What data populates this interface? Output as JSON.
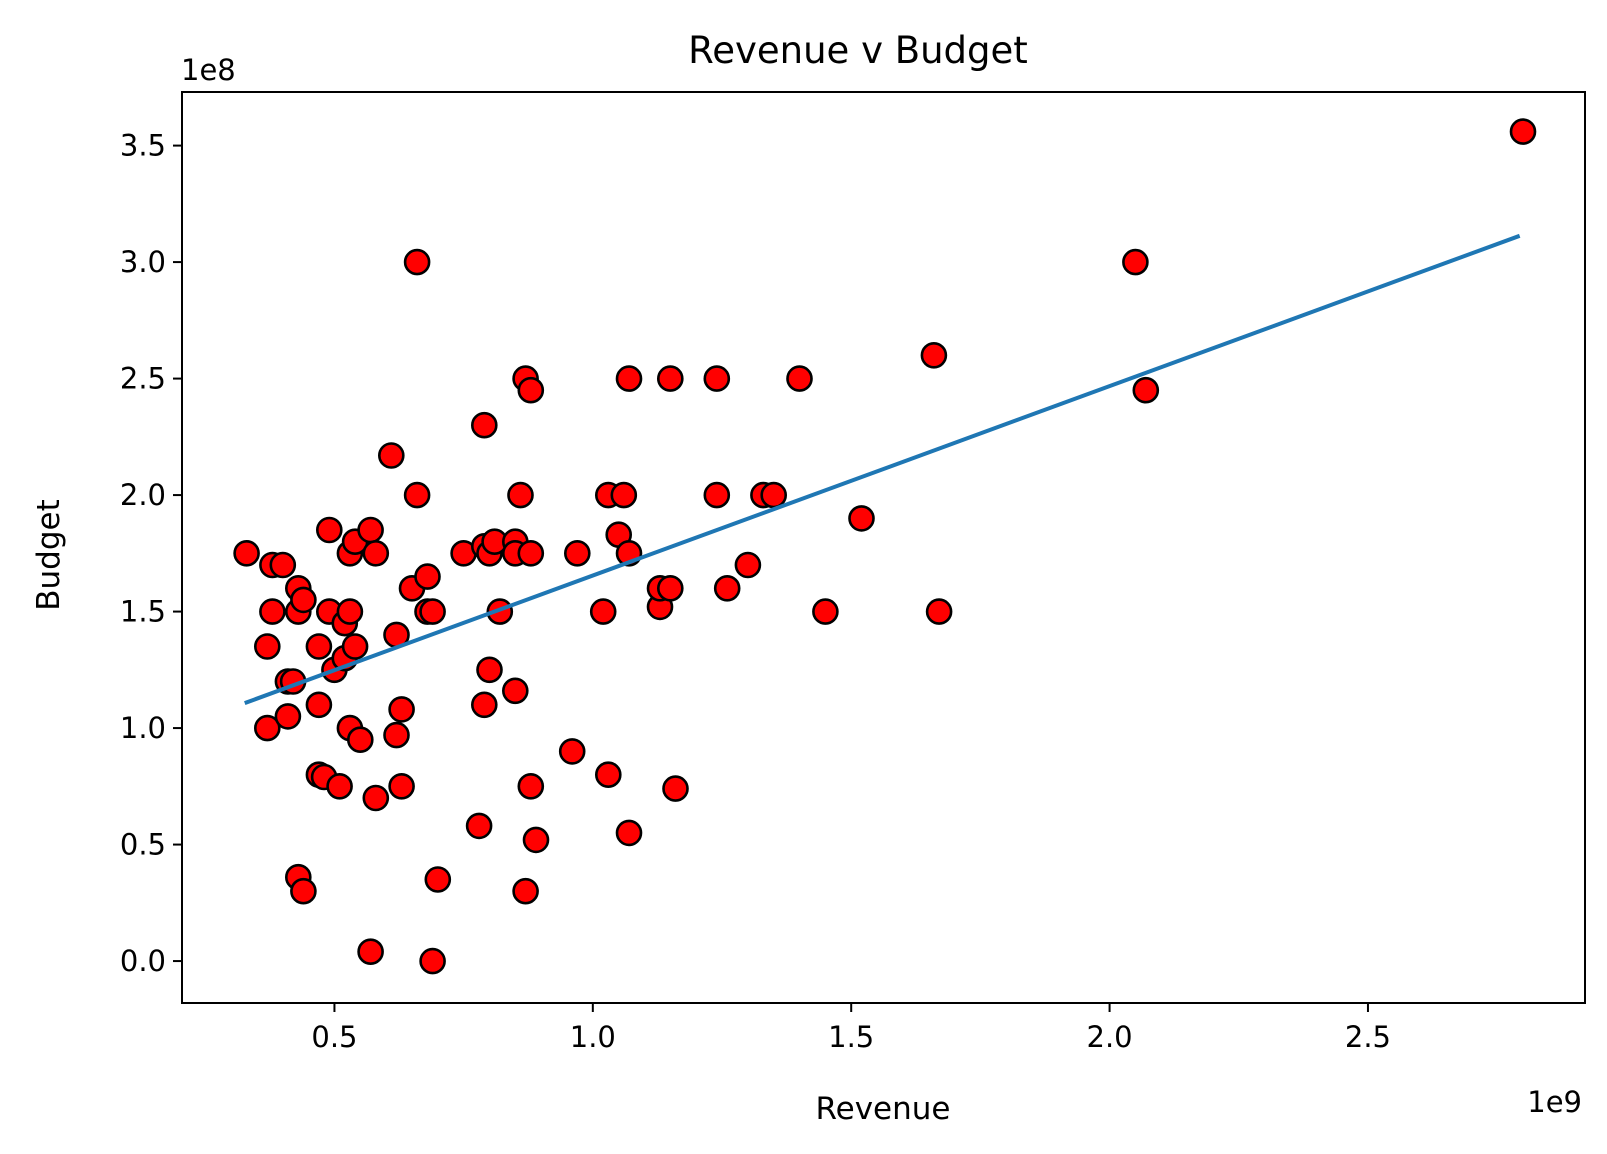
{
  "chart_data": {
    "type": "scatter",
    "title": "Revenue v Budget",
    "xlabel": "Revenue",
    "ylabel": "Budget",
    "x_offset_label": "1e9",
    "y_offset_label": "1e8",
    "xlim": [
      0.205,
      2.92
    ],
    "ylim": [
      -0.18,
      3.73
    ],
    "xticks": [
      0.5,
      1.0,
      1.5,
      2.0,
      2.5
    ],
    "xtick_labels": [
      "0.5",
      "1.0",
      "1.5",
      "2.0",
      "2.5"
    ],
    "yticks": [
      0.0,
      0.5,
      1.0,
      1.5,
      2.0,
      2.5,
      3.0,
      3.5
    ],
    "ytick_labels": [
      "0.0",
      "0.5",
      "1.0",
      "1.5",
      "2.0",
      "2.5",
      "3.0",
      "3.5"
    ],
    "grid": false,
    "marker_color": "#ff0000",
    "marker_edge_color": "#000000",
    "trend_color": "#1f77b4",
    "trend_line": {
      "x": [
        0.33,
        2.79
      ],
      "y": [
        1.11,
        3.11
      ]
    },
    "series": [
      {
        "points": [
          [
            0.33,
            1.75
          ],
          [
            0.37,
            1.35
          ],
          [
            0.37,
            1.0
          ],
          [
            0.38,
            1.5
          ],
          [
            0.38,
            1.7
          ],
          [
            0.4,
            1.7
          ],
          [
            0.41,
            1.2
          ],
          [
            0.41,
            1.05
          ],
          [
            0.42,
            1.2
          ],
          [
            0.43,
            1.6
          ],
          [
            0.43,
            1.5
          ],
          [
            0.44,
            1.55
          ],
          [
            0.43,
            0.36
          ],
          [
            0.44,
            0.3
          ],
          [
            0.47,
            1.35
          ],
          [
            0.47,
            1.1
          ],
          [
            0.47,
            0.8
          ],
          [
            0.48,
            0.79
          ],
          [
            0.49,
            1.85
          ],
          [
            0.49,
            1.5
          ],
          [
            0.5,
            1.25
          ],
          [
            0.51,
            0.75
          ],
          [
            0.52,
            1.3
          ],
          [
            0.52,
            1.45
          ],
          [
            0.53,
            1.5
          ],
          [
            0.53,
            1.75
          ],
          [
            0.53,
            1.0
          ],
          [
            0.54,
            1.35
          ],
          [
            0.54,
            1.8
          ],
          [
            0.55,
            0.95
          ],
          [
            0.57,
            1.85
          ],
          [
            0.57,
            0.04
          ],
          [
            0.58,
            1.75
          ],
          [
            0.58,
            0.7
          ],
          [
            0.61,
            2.17
          ],
          [
            0.62,
            1.4
          ],
          [
            0.62,
            0.97
          ],
          [
            0.63,
            1.08
          ],
          [
            0.63,
            0.75
          ],
          [
            0.65,
            1.6
          ],
          [
            0.66,
            3.0
          ],
          [
            0.66,
            2.0
          ],
          [
            0.68,
            1.65
          ],
          [
            0.68,
            1.5
          ],
          [
            0.69,
            1.5
          ],
          [
            0.69,
            0.0
          ],
          [
            0.7,
            0.35
          ],
          [
            0.75,
            1.75
          ],
          [
            0.78,
            0.58
          ],
          [
            0.79,
            1.1
          ],
          [
            0.79,
            1.78
          ],
          [
            0.79,
            2.3
          ],
          [
            0.8,
            1.75
          ],
          [
            0.8,
            1.25
          ],
          [
            0.81,
            1.8
          ],
          [
            0.82,
            1.5
          ],
          [
            0.85,
            1.8
          ],
          [
            0.85,
            1.75
          ],
          [
            0.85,
            1.16
          ],
          [
            0.86,
            2.0
          ],
          [
            0.87,
            2.5
          ],
          [
            0.87,
            0.3
          ],
          [
            0.88,
            2.45
          ],
          [
            0.88,
            1.75
          ],
          [
            0.88,
            0.75
          ],
          [
            0.89,
            0.52
          ],
          [
            0.96,
            0.9
          ],
          [
            0.97,
            1.75
          ],
          [
            1.02,
            1.5
          ],
          [
            1.03,
            2.0
          ],
          [
            1.03,
            0.8
          ],
          [
            1.05,
            1.83
          ],
          [
            1.06,
            2.0
          ],
          [
            1.07,
            2.5
          ],
          [
            1.07,
            1.75
          ],
          [
            1.07,
            0.55
          ],
          [
            1.13,
            1.52
          ],
          [
            1.13,
            1.6
          ],
          [
            1.15,
            1.6
          ],
          [
            1.15,
            2.5
          ],
          [
            1.16,
            0.74
          ],
          [
            1.24,
            2.5
          ],
          [
            1.24,
            2.0
          ],
          [
            1.26,
            1.6
          ],
          [
            1.3,
            1.7
          ],
          [
            1.33,
            2.0
          ],
          [
            1.35,
            2.0
          ],
          [
            1.4,
            2.5
          ],
          [
            1.45,
            1.5
          ],
          [
            1.52,
            1.9
          ],
          [
            1.66,
            2.6
          ],
          [
            1.67,
            1.5
          ],
          [
            2.05,
            3.0
          ],
          [
            2.07,
            2.45
          ],
          [
            2.8,
            3.56
          ]
        ]
      }
    ]
  }
}
